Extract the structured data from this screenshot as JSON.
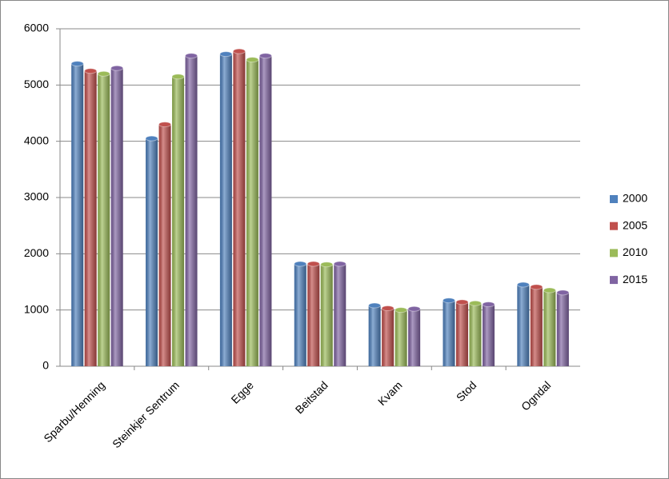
{
  "chart_data": {
    "type": "bar",
    "categories": [
      "Sparbu/Henning",
      "Steinkjer Sentrum",
      "Egge",
      "Beitstad",
      "Kvam",
      "Stod",
      "Ogndal"
    ],
    "series": [
      {
        "name": "2000",
        "color": "#4f81bd",
        "values": [
          5380,
          4050,
          5550,
          1820,
          1080,
          1170,
          1450
        ]
      },
      {
        "name": "2005",
        "color": "#c0504d",
        "values": [
          5250,
          4300,
          5600,
          1820,
          1030,
          1140,
          1410
        ]
      },
      {
        "name": "2010",
        "color": "#9bbb59",
        "values": [
          5200,
          5150,
          5450,
          1810,
          1000,
          1120,
          1350
        ]
      },
      {
        "name": "2015",
        "color": "#8064a2",
        "values": [
          5300,
          5520,
          5520,
          1820,
          1020,
          1100,
          1310
        ]
      }
    ],
    "ylim": [
      0,
      6000
    ],
    "yticks": [
      0,
      1000,
      2000,
      3000,
      4000,
      5000,
      6000
    ],
    "grid": true
  }
}
